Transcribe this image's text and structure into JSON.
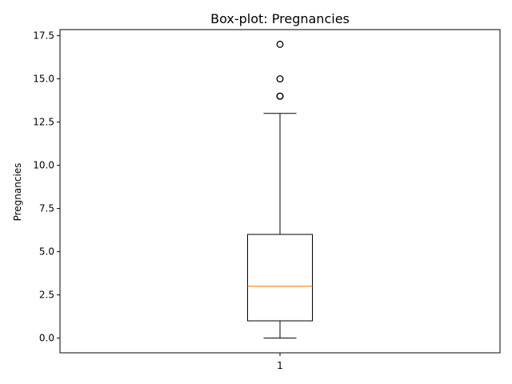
{
  "chart_data": {
    "type": "box",
    "title": "Box-plot: Pregnancies",
    "xlabel": "",
    "ylabel": "Pregnancies",
    "categories": [
      "1"
    ],
    "ylim": [
      -0.85,
      17.85
    ],
    "yticks": [
      0.0,
      2.5,
      5.0,
      7.5,
      10.0,
      12.5,
      15.0,
      17.5
    ],
    "ytick_labels": [
      "0.0",
      "2.5",
      "5.0",
      "7.5",
      "10.0",
      "12.5",
      "15.0",
      "17.5"
    ],
    "grid": false,
    "boxes": [
      {
        "category": "1",
        "whisker_low": 0,
        "q1": 1,
        "median": 3,
        "q3": 6,
        "whisker_high": 13,
        "outliers": [
          14,
          14,
          15,
          17
        ]
      }
    ],
    "colors": {
      "box": "#000000",
      "median": "#ff7f0e",
      "outlier": "#000000"
    }
  }
}
